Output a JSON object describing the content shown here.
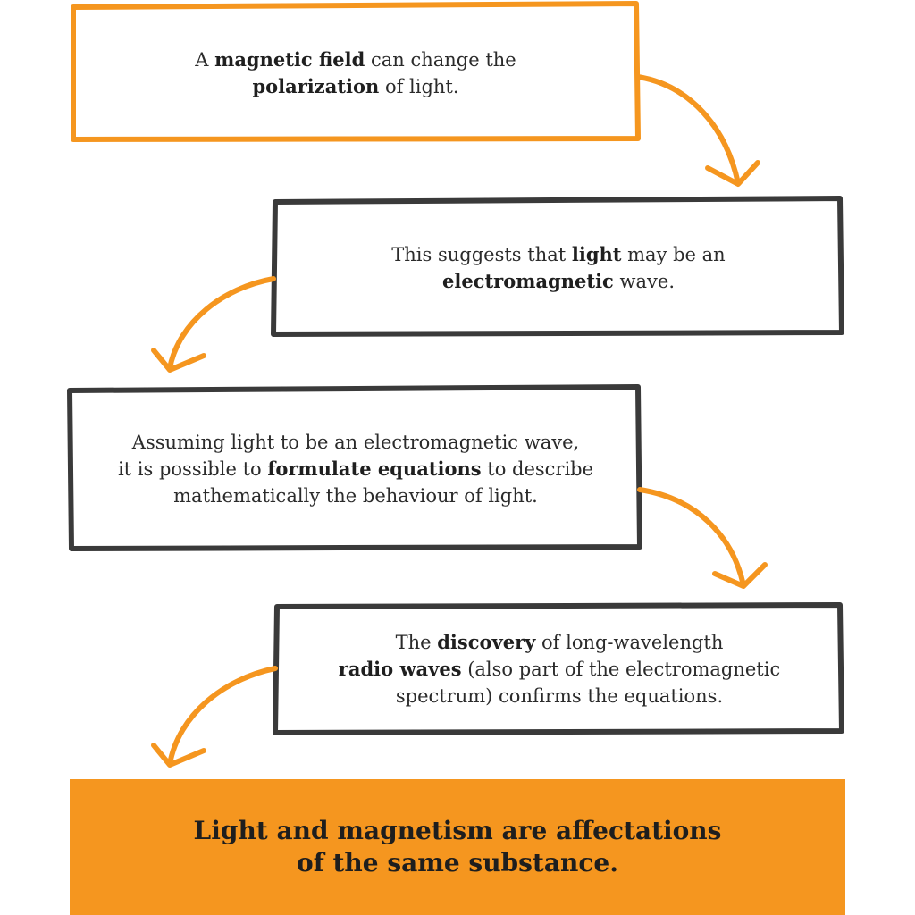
{
  "colors": {
    "accent": "#f5961f",
    "frame": "#3a3a3a",
    "text": "#2b2b2b"
  },
  "steps": [
    {
      "lines": [
        [
          {
            "t": "A ",
            "b": false
          },
          {
            "t": "magnetic field",
            "b": true
          },
          {
            "t": " can change the",
            "b": false
          }
        ],
        [
          {
            "t": "polarization",
            "b": true
          },
          {
            "t": " of light.",
            "b": false
          }
        ]
      ]
    },
    {
      "lines": [
        [
          {
            "t": "This suggests that ",
            "b": false
          },
          {
            "t": "light",
            "b": true
          },
          {
            "t": " may be an",
            "b": false
          }
        ],
        [
          {
            "t": "electromagnetic",
            "b": true
          },
          {
            "t": " wave.",
            "b": false
          }
        ]
      ]
    },
    {
      "lines": [
        [
          {
            "t": "Assuming light to be an electromagnetic wave,",
            "b": false
          }
        ],
        [
          {
            "t": "it is possible to ",
            "b": false
          },
          {
            "t": "formulate equations",
            "b": true
          },
          {
            "t": " to describe",
            "b": false
          }
        ],
        [
          {
            "t": "mathematically the behaviour of light.",
            "b": false
          }
        ]
      ]
    },
    {
      "lines": [
        [
          {
            "t": "The ",
            "b": false
          },
          {
            "t": "discovery",
            "b": true
          },
          {
            "t": " of long-wavelength",
            "b": false
          }
        ],
        [
          {
            "t": "radio waves",
            "b": true
          },
          {
            "t": " (also part of the electromagnetic",
            "b": false
          }
        ],
        [
          {
            "t": "spectrum) confirms the equations.",
            "b": false
          }
        ]
      ]
    }
  ],
  "conclusion": {
    "line1": "Light and magnetism are affectations",
    "line2": "of the same substance."
  }
}
